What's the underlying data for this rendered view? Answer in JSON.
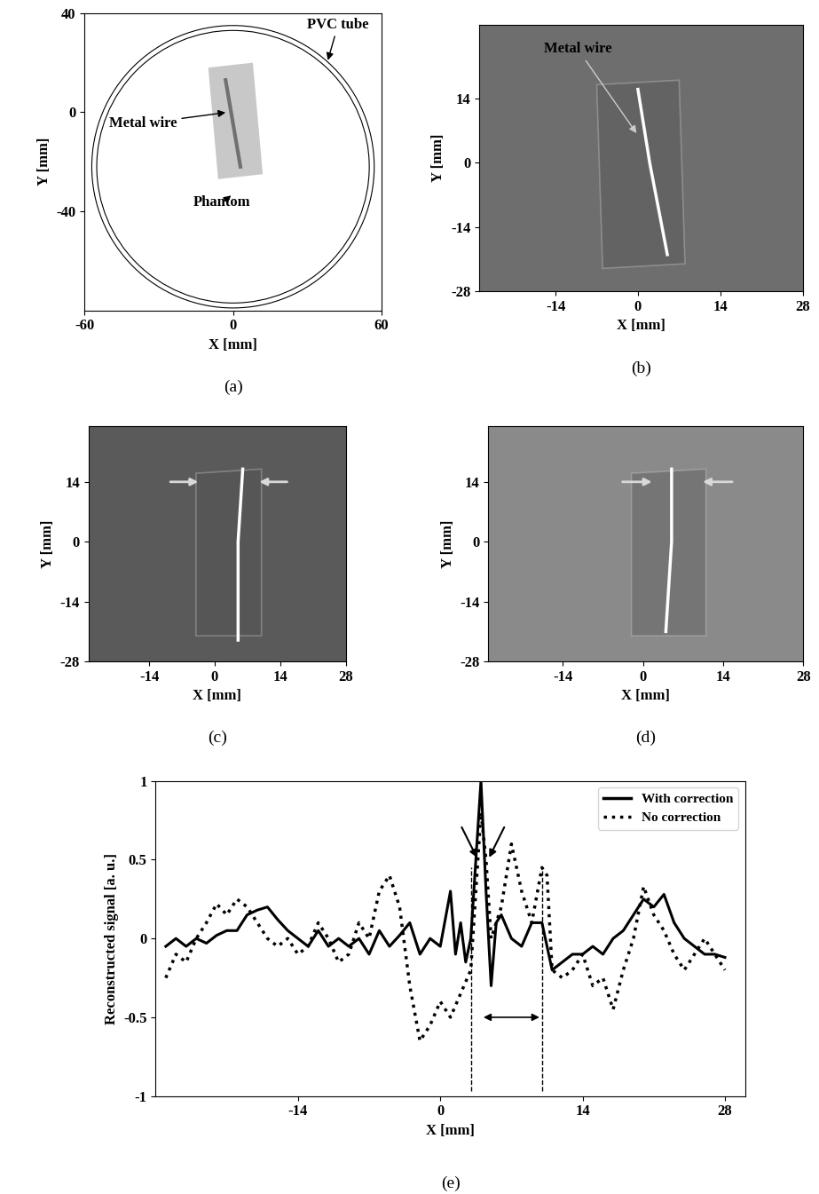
{
  "chart_data": [
    {
      "type": "schematic",
      "panel": "(a)",
      "xlabel": "X [mm]",
      "ylabel": "Y [mm]",
      "xlim": [
        -60,
        60
      ],
      "ylim": [
        -80,
        40
      ],
      "xticks": [
        -60,
        0,
        60
      ],
      "yticks": [
        -40,
        0,
        40
      ],
      "tube": {
        "center": [
          0,
          -22
        ],
        "radii": [
          55,
          57
        ]
      },
      "phantom": [
        [
          -10,
          18
        ],
        [
          8,
          20
        ],
        [
          12,
          -25
        ],
        [
          -6,
          -27
        ]
      ],
      "phantom_color": "#c8c8c8",
      "wire": {
        "x": [
          -3,
          3
        ],
        "y": [
          13,
          -22
        ]
      },
      "wire_color": "#707070",
      "annotations": [
        {
          "text": "PVC tube",
          "xy": [
            38,
            20
          ],
          "xytext": [
            30,
            34
          ]
        },
        {
          "text": "Metal wire",
          "xy": [
            -2,
            0
          ],
          "xytext": [
            -50,
            -6
          ]
        },
        {
          "text": "Phantom",
          "xy": [
            0,
            -33
          ],
          "xytext": [
            -16,
            -38
          ]
        }
      ]
    },
    {
      "type": "image",
      "panel": "(b)",
      "xlabel": "X [mm]",
      "ylabel": "Y [mm]",
      "xlim": [
        -27,
        28
      ],
      "ylim": [
        -28,
        30
      ],
      "xticks": [
        -14,
        0,
        14,
        28
      ],
      "yticks": [
        -28,
        -14,
        0,
        14
      ],
      "color": "#6e6e6e",
      "phantom": [
        [
          -7,
          17
        ],
        [
          7,
          18
        ],
        [
          8,
          -22
        ],
        [
          -6,
          -23
        ]
      ],
      "wire": {
        "x": [
          0,
          2,
          5
        ],
        "y": [
          16,
          0,
          -20
        ]
      },
      "annotations": [
        {
          "text": "Metal wire",
          "xy": [
            0,
            6
          ],
          "xytext": [
            -16,
            24
          ]
        }
      ],
      "arrows": []
    },
    {
      "type": "image",
      "panel": "(c)",
      "xlabel": "X [mm]",
      "ylabel": "Y [mm]",
      "xlim": [
        -27,
        28
      ],
      "ylim": [
        -28,
        27
      ],
      "xticks": [
        -14,
        0,
        14,
        28
      ],
      "yticks": [
        -28,
        -14,
        0,
        14
      ],
      "color": "#5a5a5a",
      "phantom": [
        [
          -4,
          16
        ],
        [
          10,
          17
        ],
        [
          10,
          -22
        ],
        [
          -4,
          -22
        ]
      ],
      "wire": {
        "x": [
          6,
          5,
          5
        ],
        "y": [
          17,
          0,
          -23
        ]
      },
      "annotations": [],
      "arrows": [
        {
          "xy": [
            -3,
            14
          ],
          "xytext": [
            -10,
            14
          ]
        },
        {
          "xy": [
            9,
            14
          ],
          "xytext": [
            16,
            14
          ]
        }
      ]
    },
    {
      "type": "image",
      "panel": "(d)",
      "xlabel": "X [mm]",
      "ylabel": "Y [mm]",
      "xlim": [
        -27,
        28
      ],
      "ylim": [
        -28,
        27
      ],
      "xticks": [
        -14,
        0,
        14,
        28
      ],
      "yticks": [
        -28,
        -14,
        0,
        14
      ],
      "color": "#8a8a8a",
      "phantom": [
        [
          -2,
          16
        ],
        [
          11,
          17
        ],
        [
          11,
          -22
        ],
        [
          -2,
          -22
        ]
      ],
      "wire": {
        "x": [
          5,
          5,
          4
        ],
        "y": [
          17,
          0,
          -21
        ]
      },
      "annotations": [],
      "arrows": [
        {
          "xy": [
            2,
            14
          ],
          "xytext": [
            -4,
            14
          ]
        },
        {
          "xy": [
            10,
            14
          ],
          "xytext": [
            16,
            14
          ]
        }
      ]
    },
    {
      "type": "line",
      "panel": "(e)",
      "xlabel": "X [mm]",
      "ylabel": "Reconstructed signal [a. u.]",
      "xlim": [
        -28,
        30
      ],
      "ylim": [
        -1,
        1
      ],
      "xticks": [
        -14,
        0,
        14,
        28
      ],
      "yticks": [
        -1,
        -0.5,
        0,
        0.5,
        1
      ],
      "legend": "upper right",
      "series": [
        {
          "name": "With correction",
          "color": "#000000",
          "line_style": "solid",
          "x": [
            -27,
            -26,
            -25,
            -24,
            -23,
            -22,
            -21,
            -20,
            -19,
            -18,
            -17,
            -16,
            -15,
            -14,
            -13,
            -12,
            -11,
            -10,
            -9,
            -8,
            -7,
            -6,
            -5,
            -4,
            -3,
            -2,
            -1,
            0,
            1,
            1.5,
            2,
            2.5,
            3,
            3.5,
            4,
            4.5,
            5,
            5.5,
            6,
            7,
            8,
            9,
            10,
            11,
            12,
            13,
            14,
            15,
            16,
            17,
            18,
            19,
            20,
            21,
            22,
            23,
            24,
            25,
            26,
            27,
            28
          ],
          "values": [
            -0.05,
            0,
            -0.05,
            0,
            -0.03,
            0.02,
            0.05,
            0.05,
            0.15,
            0.18,
            0.2,
            0.12,
            0.05,
            0,
            -0.05,
            0.05,
            -0.05,
            0,
            -0.05,
            0,
            -0.1,
            0.05,
            -0.05,
            0.02,
            0.1,
            -0.1,
            0,
            -0.05,
            0.3,
            -0.1,
            0.1,
            -0.15,
            0,
            0.5,
            1.0,
            0.3,
            -0.3,
            0.1,
            0.15,
            0,
            -0.05,
            0.1,
            0.1,
            -0.2,
            -0.15,
            -0.1,
            -0.1,
            -0.05,
            -0.1,
            0,
            0.05,
            0.15,
            0.25,
            0.2,
            0.28,
            0.1,
            0,
            -0.05,
            -0.1,
            -0.1,
            -0.12
          ]
        },
        {
          "name": "No correction",
          "color": "#000000",
          "line_style": "dotted",
          "x": [
            -27,
            -26,
            -25,
            -24,
            -23,
            -22,
            -21,
            -20,
            -19,
            -18,
            -17,
            -16,
            -15,
            -14,
            -13,
            -12,
            -11,
            -10,
            -9,
            -8,
            -7,
            -6,
            -5,
            -4,
            -3,
            -2,
            -1,
            0,
            1,
            2,
            3,
            3.5,
            4,
            4.5,
            5,
            6,
            7,
            8,
            9,
            10,
            10.5,
            11,
            12,
            13,
            14,
            15,
            16,
            17,
            18,
            19,
            20,
            21,
            22,
            23,
            24,
            25,
            26,
            27,
            28
          ],
          "values": [
            -0.25,
            -0.1,
            -0.15,
            0,
            0.1,
            0.22,
            0.15,
            0.25,
            0.2,
            0.1,
            0,
            -0.05,
            0,
            -0.1,
            -0.05,
            0.1,
            0,
            -0.15,
            -0.1,
            0.1,
            0,
            0.3,
            0.4,
            0.2,
            -0.3,
            -0.65,
            -0.55,
            -0.4,
            -0.5,
            -0.35,
            -0.2,
            0.3,
            0.8,
            0.5,
            0,
            0.2,
            0.6,
            0.3,
            0.1,
            0.45,
            0.4,
            -0.2,
            -0.25,
            -0.2,
            -0.1,
            -0.3,
            -0.25,
            -0.45,
            -0.2,
            0,
            0.33,
            0.15,
            0.05,
            -0.1,
            -0.2,
            -0.1,
            0,
            -0.1,
            -0.2
          ]
        }
      ],
      "arrows": [
        {
          "xy": [
            3.7,
            0.5
          ],
          "xytext": [
            2.0,
            0.72
          ]
        },
        {
          "xy": [
            4.7,
            0.5
          ],
          "xytext": [
            6.4,
            0.72
          ]
        }
      ],
      "vlines": [
        {
          "x": 3,
          "y": [
            -0.97,
            0.45
          ]
        },
        {
          "x": 10,
          "y": [
            -0.97,
            0.45
          ]
        }
      ],
      "double_arrow": {
        "x": [
          4,
          10
        ],
        "y": -0.5
      }
    }
  ]
}
